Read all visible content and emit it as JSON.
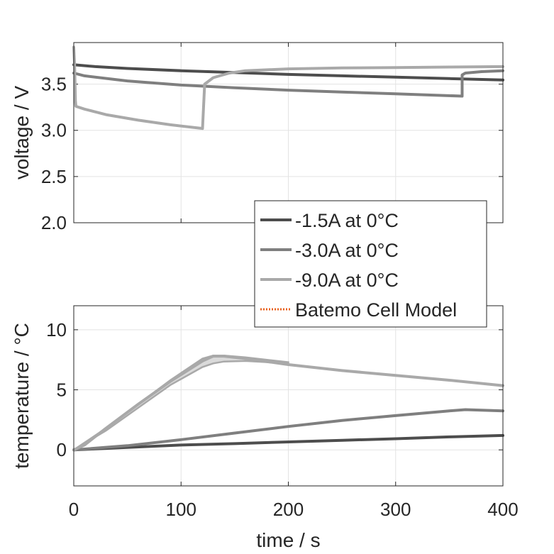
{
  "chart_data": [
    {
      "type": "line",
      "title": "",
      "xlabel": "",
      "ylabel": "voltage / V",
      "xlim": [
        0,
        400
      ],
      "ylim": [
        2.0,
        3.95
      ],
      "xticks": [
        0,
        100,
        200,
        300,
        400
      ],
      "yticks": [
        2.0,
        2.5,
        3.0,
        3.5
      ],
      "ytick_labels": [
        "2.0",
        "2.5",
        "3.0",
        "3.5"
      ],
      "grid": true,
      "series": [
        {
          "name": "-1.5A at 0°C",
          "color": "#4d4d4d",
          "x": [
            0,
            20,
            50,
            100,
            150,
            200,
            250,
            300,
            350,
            400
          ],
          "y": [
            3.71,
            3.69,
            3.67,
            3.645,
            3.625,
            3.605,
            3.59,
            3.575,
            3.56,
            3.545
          ]
        },
        {
          "name": "-3.0A at 0°C",
          "color": "#7f7f7f",
          "x": [
            0,
            10,
            50,
            100,
            150,
            200,
            250,
            300,
            362,
            362,
            365,
            380,
            400
          ],
          "y": [
            3.62,
            3.59,
            3.535,
            3.49,
            3.46,
            3.435,
            3.415,
            3.395,
            3.37,
            3.6,
            3.62,
            3.635,
            3.645
          ]
        },
        {
          "name": "-9.0A at 0°C",
          "color": "#a9a9a9",
          "x": [
            0,
            0.7,
            1.5,
            2,
            10,
            30,
            60,
            90,
            120,
            120,
            122,
            130,
            145,
            160,
            200,
            250,
            300,
            350,
            400
          ],
          "y": [
            3.9,
            3.72,
            3.32,
            3.26,
            3.23,
            3.17,
            3.11,
            3.06,
            3.02,
            3.02,
            3.5,
            3.57,
            3.62,
            3.645,
            3.665,
            3.675,
            3.68,
            3.685,
            3.69
          ]
        }
      ]
    },
    {
      "type": "line",
      "title": "",
      "xlabel": "time / s",
      "ylabel": "temperature / °C",
      "xlim": [
        0,
        400
      ],
      "ylim": [
        -3,
        12
      ],
      "xticks": [
        0,
        100,
        200,
        300,
        400
      ],
      "yticks": [
        0,
        5,
        10
      ],
      "ytick_labels": [
        "0",
        "5",
        "10"
      ],
      "grid": true,
      "series": [
        {
          "name": "-1.5A at 0°C",
          "color": "#4d4d4d",
          "x": [
            0,
            50,
            100,
            150,
            200,
            250,
            300,
            350,
            400
          ],
          "y": [
            0,
            0.2,
            0.4,
            0.52,
            0.66,
            0.8,
            0.93,
            1.08,
            1.2
          ]
        },
        {
          "name": "-3.0A at 0°C",
          "color": "#7f7f7f",
          "x": [
            0,
            50,
            100,
            150,
            200,
            250,
            300,
            350,
            365,
            380,
            400
          ],
          "y": [
            0,
            0.35,
            0.85,
            1.4,
            1.95,
            2.45,
            2.85,
            3.25,
            3.35,
            3.3,
            3.25
          ]
        },
        {
          "name": "-9.0A at 0°C",
          "color": "#a9a9a9",
          "x": [
            0,
            10,
            30,
            60,
            90,
            120,
            130,
            140,
            160,
            200,
            250,
            300,
            350,
            400
          ],
          "y": [
            0,
            0.4,
            1.8,
            3.8,
            5.7,
            7.4,
            7.8,
            7.8,
            7.6,
            7.1,
            6.6,
            6.2,
            5.8,
            5.35
          ]
        }
      ],
      "band": {
        "name": "-9.0A at 0°C range",
        "color": "#dadada",
        "x": [
          0,
          30,
          60,
          90,
          120,
          130,
          140,
          160,
          200
        ],
        "upper": [
          0,
          1.8,
          3.8,
          5.8,
          7.6,
          7.85,
          7.85,
          7.7,
          7.3
        ],
        "lower": [
          0,
          1.6,
          3.5,
          5.4,
          6.9,
          7.2,
          7.35,
          7.4,
          7.2
        ]
      }
    }
  ],
  "legend": {
    "placement": "between-panels-right",
    "entries": [
      {
        "label": "-1.5A at 0°C",
        "color": "#4d4d4d",
        "style": "solid"
      },
      {
        "label": "-3.0A at 0°C",
        "color": "#7f7f7f",
        "style": "solid"
      },
      {
        "label": "-9.0A at 0°C",
        "color": "#a9a9a9",
        "style": "solid"
      },
      {
        "label": "Batemo Cell Model",
        "color": "#e8601c",
        "style": "dotted"
      }
    ]
  }
}
